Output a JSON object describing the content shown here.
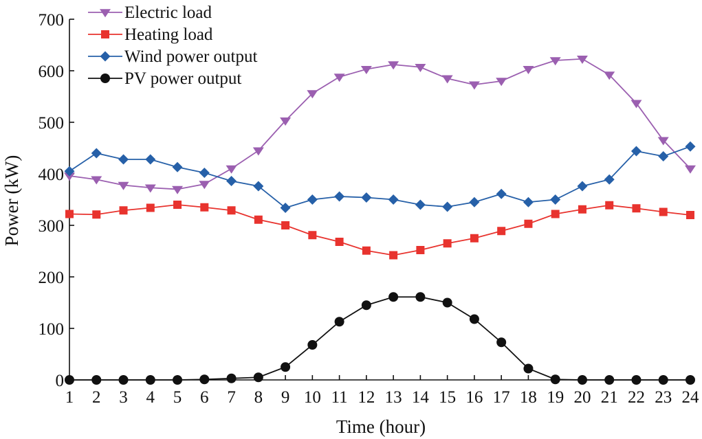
{
  "chart_data": {
    "type": "line",
    "title": "",
    "xlabel": "Time (hour)",
    "ylabel": "Power (kW)",
    "x": [
      1,
      2,
      3,
      4,
      5,
      6,
      7,
      8,
      9,
      10,
      11,
      12,
      13,
      14,
      15,
      16,
      17,
      18,
      19,
      20,
      21,
      22,
      23,
      24
    ],
    "ylim": [
      0,
      700
    ],
    "yticks": [
      0,
      100,
      200,
      300,
      400,
      500,
      600,
      700
    ],
    "grid": false,
    "legend_position": "top-left",
    "series": [
      {
        "name": "Electric load",
        "color": "#9b5fb0",
        "marker": "triangle-down",
        "values": [
          396,
          389,
          378,
          373,
          370,
          380,
          410,
          445,
          503,
          556,
          588,
          603,
          612,
          607,
          585,
          573,
          580,
          603,
          620,
          623,
          592,
          537,
          465,
          410
        ]
      },
      {
        "name": "Heating load",
        "color": "#e8332e",
        "marker": "square",
        "values": [
          322,
          321,
          329,
          334,
          340,
          335,
          329,
          311,
          300,
          281,
          268,
          251,
          242,
          252,
          265,
          275,
          289,
          303,
          322,
          331,
          339,
          333,
          326,
          320
        ]
      },
      {
        "name": "Wind power output",
        "color": "#2660a8",
        "marker": "diamond",
        "values": [
          405,
          440,
          428,
          428,
          413,
          402,
          386,
          376,
          334,
          350,
          356,
          354,
          350,
          340,
          336,
          345,
          361,
          345,
          350,
          376,
          389,
          444,
          434,
          453
        ]
      },
      {
        "name": "PV power output",
        "color": "#111111",
        "marker": "circle",
        "values": [
          0,
          0,
          0,
          0,
          0,
          1,
          3,
          5,
          25,
          68,
          113,
          145,
          161,
          161,
          150,
          118,
          73,
          22,
          1,
          0,
          0,
          0,
          0,
          0
        ]
      }
    ]
  }
}
